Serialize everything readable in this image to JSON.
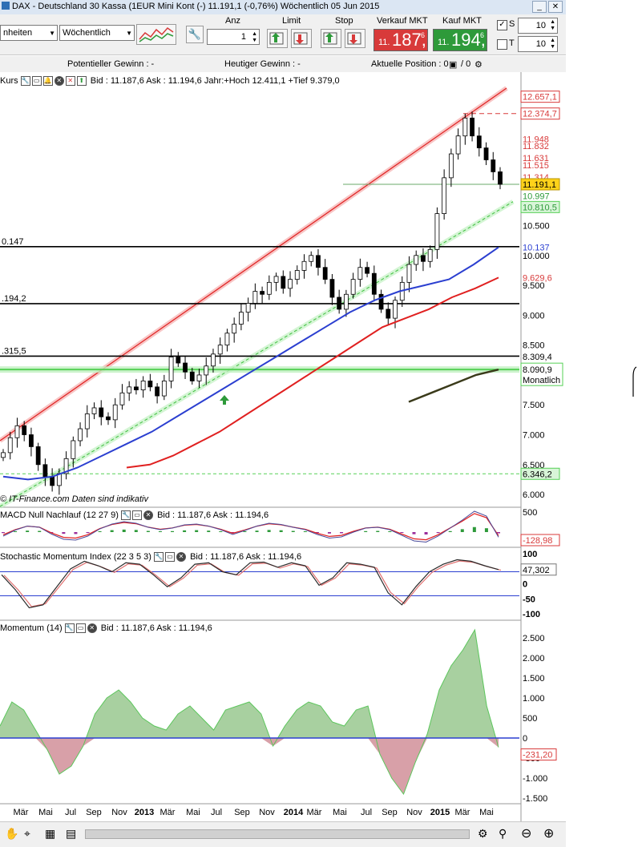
{
  "window": {
    "title": "DAX - Deutschland 30 Kassa (1EUR Mini Kont (-)    11.191,1 (-0,76%)    Wöchentlich  05 Jun 2015"
  },
  "toolbar": {
    "unit_select": "nheiten",
    "period_select": "Wöchentlich",
    "anz_label": "Anz",
    "anz_value": "1",
    "limit_label": "Limit",
    "stop_label": "Stop",
    "sell_label": "Verkauf MKT",
    "buy_label": "Kauf MKT",
    "sell_small": "11.",
    "sell_big": "187,",
    "sell_sup": "6",
    "buy_small": "11.",
    "buy_big": "194,",
    "buy_sup": "6",
    "s_label": "S",
    "s_value": "10",
    "t_label": "T",
    "t_value": "10",
    "colors": {
      "sell": "#d83a3a",
      "buy": "#2e9a3a"
    }
  },
  "statusbar": {
    "potential_gain": "Potentieller Gewinn : -",
    "today_gain": "Heutiger Gewinn : -",
    "position": "Aktuelle Position : 0",
    "position_sep": "/ 0"
  },
  "panels": {
    "main_head": "Kurs",
    "main_info": "Bid : 11.187,6 Ask : 11.194,6 Jahr:+Hoch 12.411,1 +Tief 9.379,0",
    "macd_head": "MACD Null Nachlauf (12 27 9)",
    "macd_info": "Bid : 11.187,6 Ask : 11.194,6",
    "stoch_head": "Stochastic Momentum Index (22 3 5 3)",
    "stoch_info": "Bid : 11.187,6 Ask : 11.194,6",
    "mom_head": "Momentum (14)",
    "mom_info": "Bid : 11.187,6 Ask : 11.194,6",
    "watermark": "© IT-Finance.com  Daten sind indikativ"
  },
  "chart_data": [
    {
      "type": "line",
      "name": "Kurs (weekly candles)",
      "x_labels": [
        "Mär",
        "Mai",
        "Jul",
        "Sep",
        "Nov",
        "2013",
        "Mär",
        "Mai",
        "Jul",
        "Sep",
        "Nov",
        "2014",
        "Mär",
        "Mai",
        "Jul",
        "Sep",
        "Nov",
        "2015",
        "Mär",
        "Mai"
      ],
      "y_ticks": [
        6000,
        6500,
        7000,
        7500,
        8500,
        9000,
        9500,
        10000,
        10500
      ],
      "y_tick_labels": [
        "6.000",
        "6.500",
        "7.000",
        "7.500",
        "8.500",
        "9.000",
        "9.500",
        "10.000",
        "10.500"
      ],
      "ylim": [
        5600,
        12900
      ],
      "price_close": [
        6700,
        6950,
        7150,
        7000,
        6800,
        6500,
        6300,
        6150,
        6350,
        6600,
        6900,
        7100,
        7350,
        7450,
        7300,
        7250,
        7500,
        7700,
        7800,
        7750,
        7900,
        7800,
        7650,
        7900,
        8300,
        8200,
        8050,
        7900,
        8000,
        8150,
        8350,
        8500,
        8700,
        8850,
        9050,
        9200,
        9400,
        9350,
        9550,
        9650,
        9450,
        9600,
        9750,
        9900,
        10000,
        9800,
        9600,
        9300,
        9100,
        9350,
        9600,
        9800,
        9700,
        9350,
        9100,
        8950,
        9250,
        9550,
        9850,
        10000,
        9900,
        10100,
        10700,
        11300,
        11700,
        12000,
        12300,
        12000,
        11800,
        11600,
        11400,
        11191
      ],
      "ma_blue": [
        6300,
        6250,
        6300,
        6450,
        6650,
        6850,
        7050,
        7300,
        7550,
        7800,
        8050,
        8300,
        8550,
        8800,
        9050,
        9250,
        9400,
        9500,
        9600,
        9850,
        10137
      ],
      "ma_red": [
        6450,
        6500,
        6650,
        6850,
        7050,
        7300,
        7550,
        7800,
        8050,
        8300,
        8550,
        8800,
        8950,
        9100,
        9300,
        9450,
        9629.6
      ],
      "ma_dark": [
        7550,
        7700,
        7850,
        8000,
        8090.9
      ],
      "h_lines": [
        10147,
        9194.2,
        8315.5
      ],
      "h_line_labels": [
        "0.147",
        ".194,2",
        ".315,5"
      ],
      "green_h_lines": [
        8090.9,
        6346.2
      ],
      "price_labels": [
        {
          "v": 12657.1,
          "t": "12.657,1",
          "c": "#d83a3a"
        },
        {
          "v": 12374.7,
          "t": "12.374,7",
          "c": "#d83a3a"
        },
        {
          "v": 11948,
          "t": "11.948",
          "c": "#d83a3a"
        },
        {
          "v": 11832,
          "t": "11.832",
          "c": "#d83a3a"
        },
        {
          "v": 11631,
          "t": "11.631",
          "c": "#d83a3a"
        },
        {
          "v": 11515,
          "t": "11.515",
          "c": "#d83a3a"
        },
        {
          "v": 11314,
          "t": "11.314",
          "c": "#d83a3a"
        },
        {
          "v": 11191.1,
          "t": "11.191,1",
          "c": "#000000"
        },
        {
          "v": 10997,
          "t": "10.997",
          "c": "#2e9a3a"
        },
        {
          "v": 10810.5,
          "t": "10.810,5",
          "c": "#2e9a3a"
        },
        {
          "v": 10137,
          "t": "10.137",
          "c": "#2b3fd0"
        },
        {
          "v": 9629.6,
          "t": "9.629,6",
          "c": "#d83a3a"
        },
        {
          "v": 8309.4,
          "t": "8.309,4",
          "c": "#000000"
        },
        {
          "v": 8090.9,
          "t": "8.090,9",
          "c": "#000000"
        },
        {
          "v": 6346.2,
          "t": "6.346,2",
          "c": "#000000"
        }
      ],
      "monthly_label": "Monatlich"
    },
    {
      "type": "line",
      "name": "MACD Null Nachlauf (12 27 9)",
      "y_ticks": [
        500
      ],
      "y_tick_labels": [
        "500"
      ],
      "last_value": "-128,98",
      "macd": [
        -100,
        50,
        150,
        120,
        -50,
        -180,
        -200,
        -100,
        80,
        200,
        260,
        220,
        120,
        60,
        100,
        180,
        200,
        150,
        60,
        -60,
        40,
        150,
        220,
        190,
        120,
        60,
        -60,
        -150,
        -120,
        0,
        100,
        120,
        60,
        -80,
        -220,
        -250,
        -100,
        100,
        300,
        520,
        400,
        -128.98
      ]
    },
    {
      "type": "line",
      "name": "Stochastic Momentum Index (22 3 5 3)",
      "y_ticks": [
        100,
        0,
        -50,
        -100
      ],
      "y_tick_labels": [
        "100",
        "0",
        "-50",
        "-100"
      ],
      "last_value": "47,302",
      "smi": [
        30,
        -20,
        -80,
        -70,
        -10,
        50,
        75,
        60,
        40,
        70,
        65,
        30,
        -10,
        20,
        65,
        70,
        40,
        30,
        70,
        72,
        55,
        70,
        60,
        -5,
        20,
        70,
        65,
        55,
        -30,
        -70,
        -10,
        40,
        65,
        80,
        75,
        60,
        47.3
      ]
    },
    {
      "type": "area",
      "name": "Momentum (14)",
      "y_ticks": [
        2500,
        2000,
        1500,
        1000,
        500,
        0,
        -500,
        -1000,
        -1500
      ],
      "y_tick_labels": [
        "2.500",
        "2.000",
        "1.500",
        "1.000",
        "500",
        "0",
        "-500",
        "-1.000",
        "-1.500"
      ],
      "last_value": "-231,20",
      "momentum": [
        300,
        900,
        700,
        200,
        -300,
        -900,
        -700,
        -200,
        600,
        1000,
        1200,
        900,
        500,
        300,
        200,
        600,
        800,
        500,
        200,
        700,
        800,
        900,
        600,
        -200,
        300,
        700,
        900,
        800,
        400,
        300,
        700,
        800,
        -400,
        -1000,
        -1400,
        -600,
        100,
        1200,
        1800,
        2200,
        2700,
        800,
        -231.2
      ]
    }
  ]
}
